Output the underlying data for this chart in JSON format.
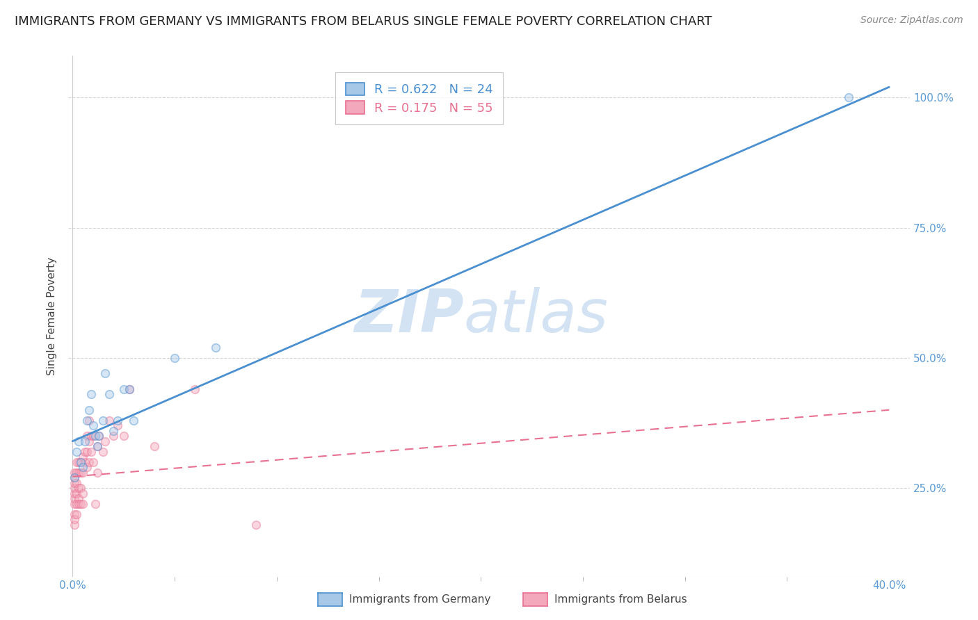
{
  "title": "IMMIGRANTS FROM GERMANY VS IMMIGRANTS FROM BELARUS SINGLE FEMALE POVERTY CORRELATION CHART",
  "source": "Source: ZipAtlas.com",
  "ylabel": "Single Female Poverty",
  "watermark": "ZIPatlas",
  "germany_color": "#a8c8e8",
  "belarus_color": "#f4a8bc",
  "germany_line_color": "#4a90d0",
  "belarus_line_color": "#e87090",
  "germany_scatter": {
    "x": [
      0.001,
      0.002,
      0.003,
      0.004,
      0.005,
      0.006,
      0.007,
      0.008,
      0.009,
      0.01,
      0.011,
      0.012,
      0.013,
      0.015,
      0.016,
      0.018,
      0.02,
      0.022,
      0.025,
      0.028,
      0.03,
      0.05,
      0.07,
      0.38
    ],
    "y": [
      0.27,
      0.32,
      0.34,
      0.3,
      0.29,
      0.34,
      0.38,
      0.4,
      0.43,
      0.37,
      0.35,
      0.33,
      0.35,
      0.38,
      0.47,
      0.43,
      0.36,
      0.38,
      0.44,
      0.44,
      0.38,
      0.5,
      0.52,
      1.0
    ]
  },
  "belarus_scatter": {
    "x": [
      0.001,
      0.001,
      0.001,
      0.001,
      0.001,
      0.001,
      0.001,
      0.001,
      0.001,
      0.001,
      0.002,
      0.002,
      0.002,
      0.002,
      0.002,
      0.002,
      0.003,
      0.003,
      0.003,
      0.003,
      0.003,
      0.004,
      0.004,
      0.004,
      0.004,
      0.005,
      0.005,
      0.005,
      0.005,
      0.006,
      0.006,
      0.007,
      0.007,
      0.007,
      0.008,
      0.008,
      0.008,
      0.009,
      0.009,
      0.01,
      0.01,
      0.011,
      0.012,
      0.012,
      0.013,
      0.015,
      0.016,
      0.018,
      0.02,
      0.022,
      0.025,
      0.028,
      0.04,
      0.06,
      0.09
    ],
    "y": [
      0.2,
      0.22,
      0.23,
      0.24,
      0.25,
      0.26,
      0.27,
      0.28,
      0.18,
      0.19,
      0.22,
      0.24,
      0.26,
      0.28,
      0.3,
      0.2,
      0.23,
      0.25,
      0.28,
      0.3,
      0.22,
      0.25,
      0.28,
      0.3,
      0.22,
      0.24,
      0.28,
      0.31,
      0.22,
      0.3,
      0.32,
      0.29,
      0.32,
      0.35,
      0.3,
      0.34,
      0.38,
      0.32,
      0.35,
      0.3,
      0.35,
      0.22,
      0.28,
      0.33,
      0.35,
      0.32,
      0.34,
      0.38,
      0.35,
      0.37,
      0.35,
      0.44,
      0.33,
      0.44,
      0.18
    ]
  },
  "germany_line": {
    "x0": 0.0,
    "y0": 0.34,
    "x1": 0.4,
    "y1": 1.02
  },
  "belarus_line": {
    "x0": 0.0,
    "y0": 0.272,
    "x1": 0.4,
    "y1": 0.4
  },
  "xlim": [
    -0.002,
    0.41
  ],
  "ylim": [
    0.08,
    1.08
  ],
  "y_ticks": [
    0.25,
    0.5,
    0.75,
    1.0
  ],
  "x_ticks": [
    0.0,
    0.4
  ],
  "x_minor_ticks": [
    0.05,
    0.1,
    0.15,
    0.2,
    0.25,
    0.3,
    0.35
  ],
  "background_color": "#ffffff",
  "grid_color": "#cccccc",
  "title_fontsize": 13,
  "axis_label_fontsize": 11,
  "tick_fontsize": 11,
  "scatter_size": 70,
  "scatter_alpha": 0.45,
  "scatter_linewidth": 1.2
}
